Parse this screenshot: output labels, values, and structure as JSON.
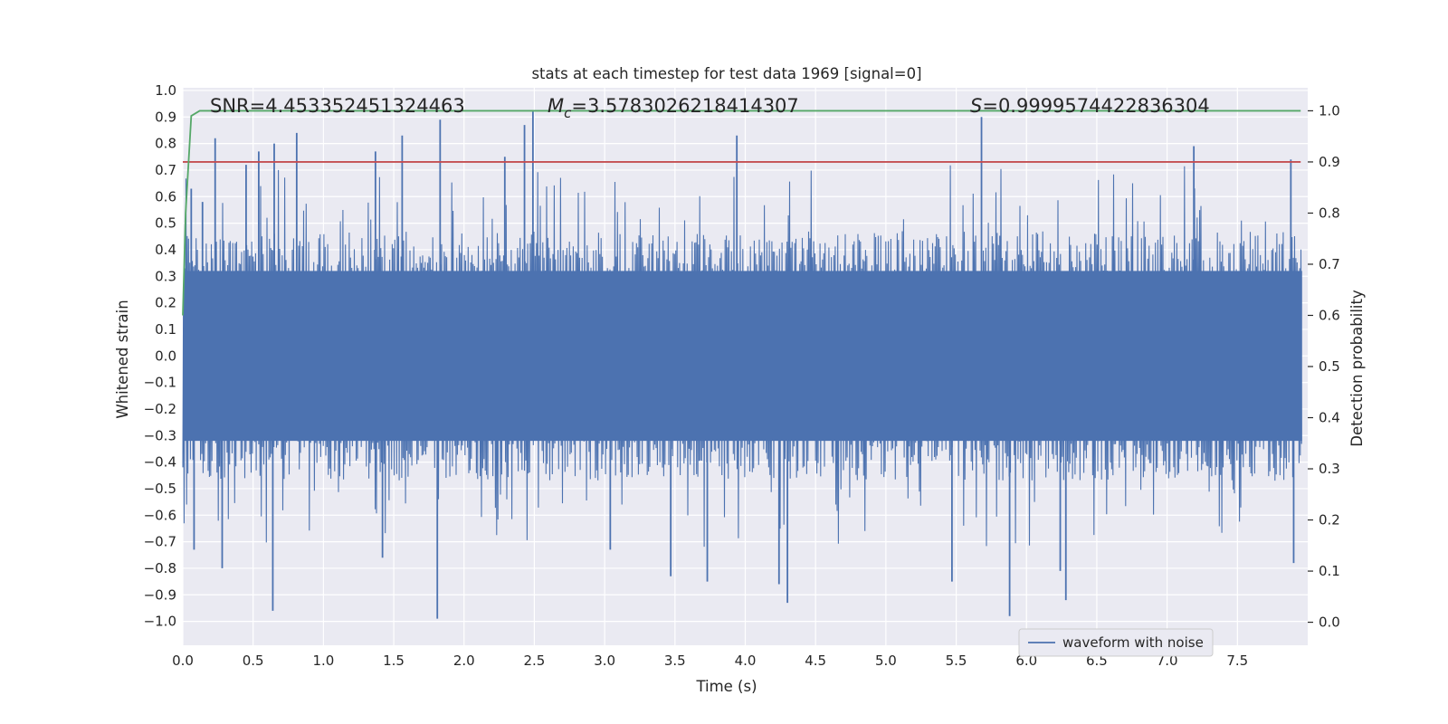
{
  "chart_data": {
    "type": "line",
    "title": "stats at each timestep for test data 1969 [signal=0]",
    "xlabel": "Time (s)",
    "ylabel": "Whitened strain",
    "y2label": "Detection probability",
    "xlim": [
      0.0,
      8.0
    ],
    "ylim": [
      -1.09,
      1.01
    ],
    "y2lim": [
      -0.045,
      1.045
    ],
    "xticks": [
      "0.0",
      "0.5",
      "1.0",
      "1.5",
      "2.0",
      "2.5",
      "3.0",
      "3.5",
      "4.0",
      "4.5",
      "5.0",
      "5.5",
      "6.0",
      "6.5",
      "7.0",
      "7.5"
    ],
    "yticks": [
      "1.0",
      "0.9",
      "0.8",
      "0.7",
      "0.6",
      "0.5",
      "0.4",
      "0.3",
      "0.2",
      "0.1",
      "0.0",
      "−0.1",
      "−0.2",
      "−0.3",
      "−0.4",
      "−0.5",
      "−0.6",
      "−0.7",
      "−0.8",
      "−0.9",
      "−1.0"
    ],
    "y2ticks": [
      "1.0",
      "0.9",
      "0.8",
      "0.7",
      "0.6",
      "0.5",
      "0.4",
      "0.3",
      "0.2",
      "0.1",
      "0.0"
    ],
    "annotations": {
      "snr": "SNR=4.453352451324463",
      "mc_symbol": "M",
      "mc_sub": "c",
      "mc_value": "=3.5783026218414307",
      "s_symbol": "S",
      "s_value": "=0.9999574422836304"
    },
    "legend": {
      "label": "waveform with noise",
      "location": "lower right"
    },
    "series": [
      {
        "name": "waveform with noise",
        "axis": "left",
        "color": "#4c72b0",
        "duration_s": 8.0,
        "typical_envelope": [
          -0.45,
          0.45
        ],
        "peaks": [
          {
            "t": 0.06,
            "v": 0.63
          },
          {
            "t": 0.14,
            "v": 0.58
          },
          {
            "t": 0.23,
            "v": 0.82
          },
          {
            "t": 0.45,
            "v": 0.72
          },
          {
            "t": 0.54,
            "v": 0.77
          },
          {
            "t": 0.65,
            "v": 0.8
          },
          {
            "t": 0.81,
            "v": 0.84
          },
          {
            "t": 1.37,
            "v": 0.77
          },
          {
            "t": 1.56,
            "v": 0.83
          },
          {
            "t": 1.83,
            "v": 0.89
          },
          {
            "t": 2.29,
            "v": 0.75
          },
          {
            "t": 2.43,
            "v": 0.87
          },
          {
            "t": 2.49,
            "v": 0.92
          },
          {
            "t": 3.94,
            "v": 0.83
          },
          {
            "t": 5.68,
            "v": 0.9
          },
          {
            "t": 7.19,
            "v": 0.79
          },
          {
            "t": 7.88,
            "v": 0.74
          }
        ],
        "troughs": [
          {
            "t": 0.08,
            "v": -0.73
          },
          {
            "t": 0.28,
            "v": -0.8
          },
          {
            "t": 0.64,
            "v": -0.96
          },
          {
            "t": 1.42,
            "v": -0.76
          },
          {
            "t": 1.81,
            "v": -0.99
          },
          {
            "t": 3.04,
            "v": -0.73
          },
          {
            "t": 3.47,
            "v": -0.83
          },
          {
            "t": 3.73,
            "v": -0.85
          },
          {
            "t": 4.24,
            "v": -0.86
          },
          {
            "t": 4.3,
            "v": -0.93
          },
          {
            "t": 5.47,
            "v": -0.85
          },
          {
            "t": 5.88,
            "v": -0.98
          },
          {
            "t": 6.24,
            "v": -0.81
          },
          {
            "t": 6.28,
            "v": -0.92
          },
          {
            "t": 7.9,
            "v": -0.78
          }
        ]
      },
      {
        "name": "detection probability",
        "axis": "right",
        "color": "#55a868",
        "x": [
          0.0,
          0.02,
          0.06,
          0.12,
          0.25,
          7.95
        ],
        "y": [
          0.6,
          0.8,
          0.99,
          1.0,
          1.0,
          1.0
        ]
      },
      {
        "name": "threshold",
        "axis": "right",
        "color": "#c44e52",
        "x": [
          0.0,
          7.95
        ],
        "y": [
          0.9,
          0.9
        ]
      }
    ]
  }
}
